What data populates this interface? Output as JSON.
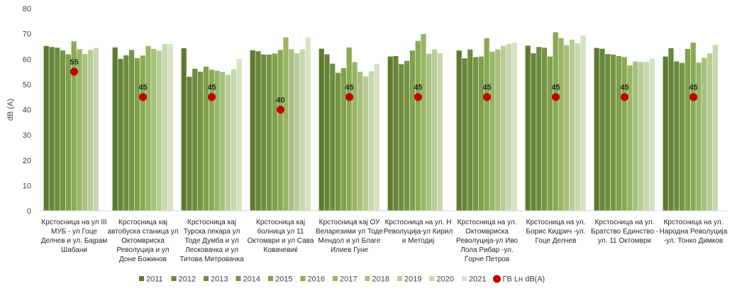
{
  "chart_data": {
    "type": "bar",
    "title": "",
    "ylabel": "dB (A)",
    "xlabel": "",
    "ylim": [
      0,
      80
    ],
    "yticks": [
      0,
      10,
      20,
      30,
      40,
      50,
      60,
      70,
      80
    ],
    "grid": false,
    "legend_position": "bottom",
    "categories": [
      [
        "Крстосница на ул III",
        "МУБ - ул Гоце",
        "Делчев и ул. Бајрам",
        "Шабани"
      ],
      [
        "Крстосница кај",
        "автобуска станица ул",
        "Октомвриска",
        "Револуција и ул",
        "Доне Божинов"
      ],
      [
        "Крстосница кај",
        "Турска пекара ул",
        "Тоде Думба и ул",
        "Лесковачка и ул",
        "Титова Митровачка"
      ],
      [
        "Крстосница кај",
        "болница ул 11",
        "Октомври и ул Сава",
        "Ковачевиќ"
      ],
      [
        "Крстосница кај ОУ",
        "Веларезими ул Тоде",
        "Мендол и ул Благе",
        "Илиев Гуне"
      ],
      [
        "Крстосница на ул. Н",
        "Револуција-ул Кирил",
        "и Методиј"
      ],
      [
        "Крстосница на ул.",
        "Октомвриска",
        "Револуција-ул Иво",
        "Лола Рибар -ул.",
        "Ѓорче Петров"
      ],
      [
        "Крстосница на ул.",
        "Борис Кидрич -ул.",
        "Гоце Делчев"
      ],
      [
        "Крстосница на ул.",
        "Братство Единство -",
        "ул. 11 Октомври"
      ],
      [
        "Крстосница на ул.",
        "Народна Револуција",
        "-ул. Тонко Димков"
      ]
    ],
    "series": [
      {
        "name": "2011",
        "color": "#5f7a30",
        "values": [
          65.2,
          64.6,
          64.3,
          63.5,
          64.1,
          61.0,
          63.4,
          65.3,
          64.4,
          61.0
        ]
      },
      {
        "name": "2012",
        "color": "#67843a",
        "values": [
          64.8,
          60.1,
          53.0,
          63.1,
          61.9,
          61.2,
          60.3,
          62.3,
          64.1,
          64.3
        ]
      },
      {
        "name": "2013",
        "color": "#6e8c3e",
        "values": [
          64.5,
          61.5,
          56.2,
          61.8,
          58.2,
          58.0,
          63.8,
          64.8,
          62.0,
          59.1
        ]
      },
      {
        "name": "2014",
        "color": "#769544",
        "values": [
          63.4,
          63.6,
          55.0,
          61.8,
          54.6,
          59.3,
          60.8,
          64.5,
          61.8,
          58.5
        ]
      },
      {
        "name": "2015",
        "color": "#7fa04c",
        "values": [
          61.9,
          60.4,
          57.0,
          62.2,
          56.4,
          63.4,
          61.0,
          61.0,
          61.2,
          64.0
        ]
      },
      {
        "name": "2016",
        "color": "#8aaa52",
        "values": [
          67.0,
          61.4,
          55.8,
          63.6,
          64.6,
          67.2,
          68.3,
          70.6,
          60.8,
          66.5
        ]
      },
      {
        "name": "2017",
        "color": "#97b563",
        "values": [
          63.9,
          65.2,
          55.4,
          68.6,
          58.8,
          69.9,
          62.9,
          68.3,
          57.5,
          58.6
        ]
      },
      {
        "name": "2018",
        "color": "#a8c07e",
        "values": [
          62.0,
          64.0,
          54.9,
          63.9,
          55.0,
          62.1,
          63.8,
          65.5,
          59.1,
          60.5
        ]
      },
      {
        "name": "2019",
        "color": "#b8cc96",
        "values": [
          63.6,
          63.3,
          53.8,
          62.3,
          53.2,
          63.8,
          65.2,
          67.7,
          58.8,
          62.2
        ]
      },
      {
        "name": "2020",
        "color": "#c7d7ae",
        "values": [
          64.4,
          65.9,
          56.0,
          63.9,
          55.2,
          62.3,
          66.0,
          66.2,
          58.9,
          65.6
        ]
      },
      {
        "name": "2021",
        "color": "#d6e2c4",
        "values": [
          null,
          66.0,
          60.0,
          68.5,
          58.1,
          null,
          66.5,
          69.3,
          60.1,
          null
        ]
      }
    ],
    "limit_series": {
      "name": "ГВ Lн dB(A)",
      "color": "#c00000",
      "values": [
        55,
        45,
        45,
        40,
        45,
        45,
        45,
        45,
        45,
        45
      ]
    }
  }
}
